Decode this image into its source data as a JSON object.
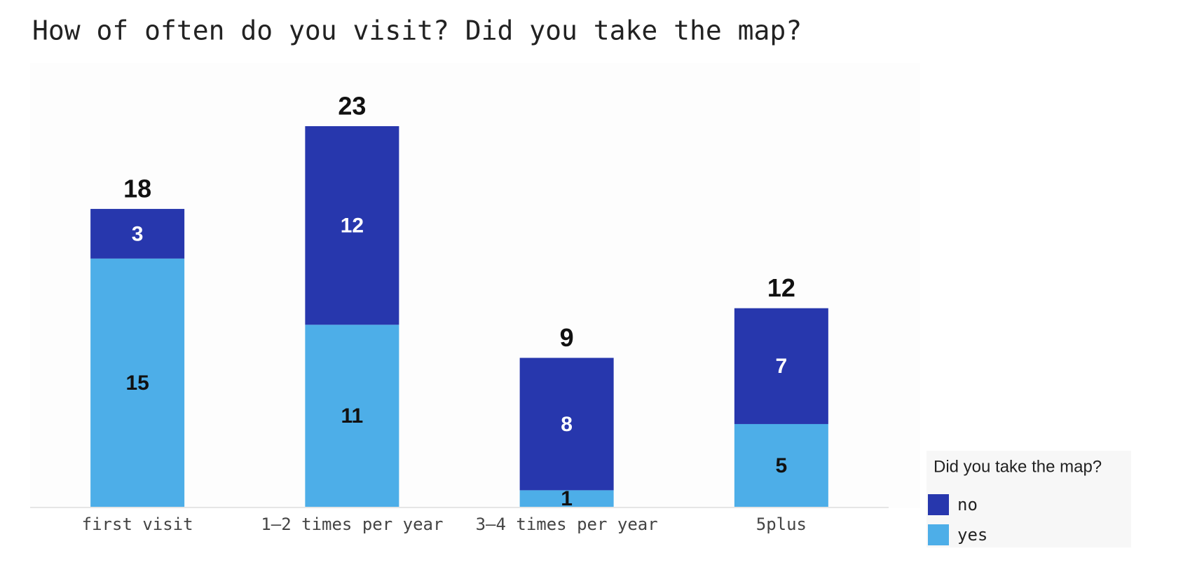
{
  "chart_data": {
    "type": "stacked-bar",
    "title": "How of often do you visit? Did you take the map?",
    "categories": [
      "first visit",
      "1–2 times per year",
      "3–4 times per year",
      "5plus"
    ],
    "series": [
      {
        "name": "yes",
        "color": "#4daee8",
        "values": [
          15,
          11,
          1,
          5
        ]
      },
      {
        "name": "no",
        "color": "#2737ad",
        "values": [
          3,
          12,
          8,
          7
        ]
      }
    ],
    "totals": [
      18,
      23,
      9,
      12
    ],
    "legend_title": "Did you take the map?",
    "legend_position": "bottom-right"
  }
}
